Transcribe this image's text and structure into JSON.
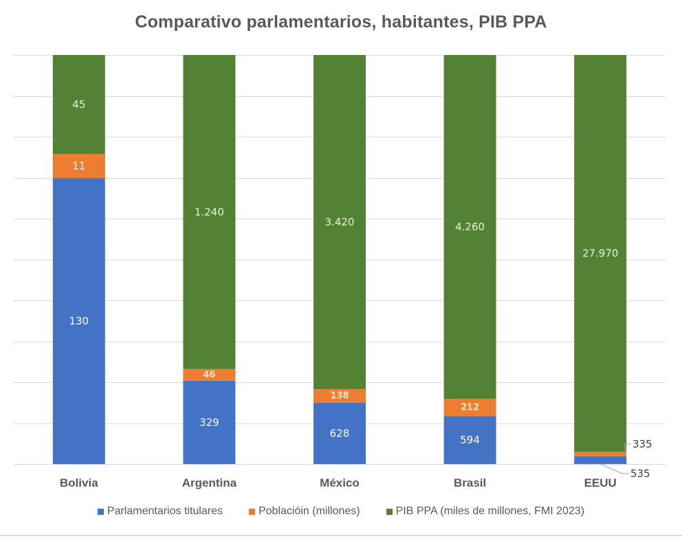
{
  "chart_data": {
    "type": "bar",
    "stacked": "percent",
    "title": "Comparativo parlamentarios, habitantes, PIB PPA",
    "xlabel": "",
    "ylabel": "",
    "ylim": [
      0,
      100
    ],
    "grid": true,
    "gridline_count": 10,
    "legend_position": "bottom",
    "categories": [
      "Bolivia",
      "Argentina",
      "México",
      "Brasil",
      "EEUU"
    ],
    "series": [
      {
        "name": "Parlamentarios titulares",
        "color": "#4472c4",
        "values": [
          130,
          329,
          628,
          594,
          535
        ],
        "labels": [
          "130",
          "329",
          "628",
          "594",
          "535"
        ]
      },
      {
        "name": "Poblacióin (millones)",
        "color": "#ed7d31",
        "values": [
          11,
          46,
          138,
          212,
          335
        ],
        "labels": [
          "11",
          "46",
          "138",
          "212",
          "335"
        ]
      },
      {
        "name": "PIB PPA (miles de millones, FMI 2023)",
        "color": "#548235",
        "values": [
          45,
          1240,
          3420,
          4260,
          27970
        ],
        "labels": [
          "45",
          "1.240",
          "3.420",
          "4.260",
          "27.970"
        ]
      }
    ],
    "callouts": [
      {
        "category": "EEUU",
        "series": "Poblacióin (millones)",
        "text": "335"
      },
      {
        "category": "EEUU",
        "series": "Parlamentarios titulares",
        "text": "535"
      }
    ]
  }
}
